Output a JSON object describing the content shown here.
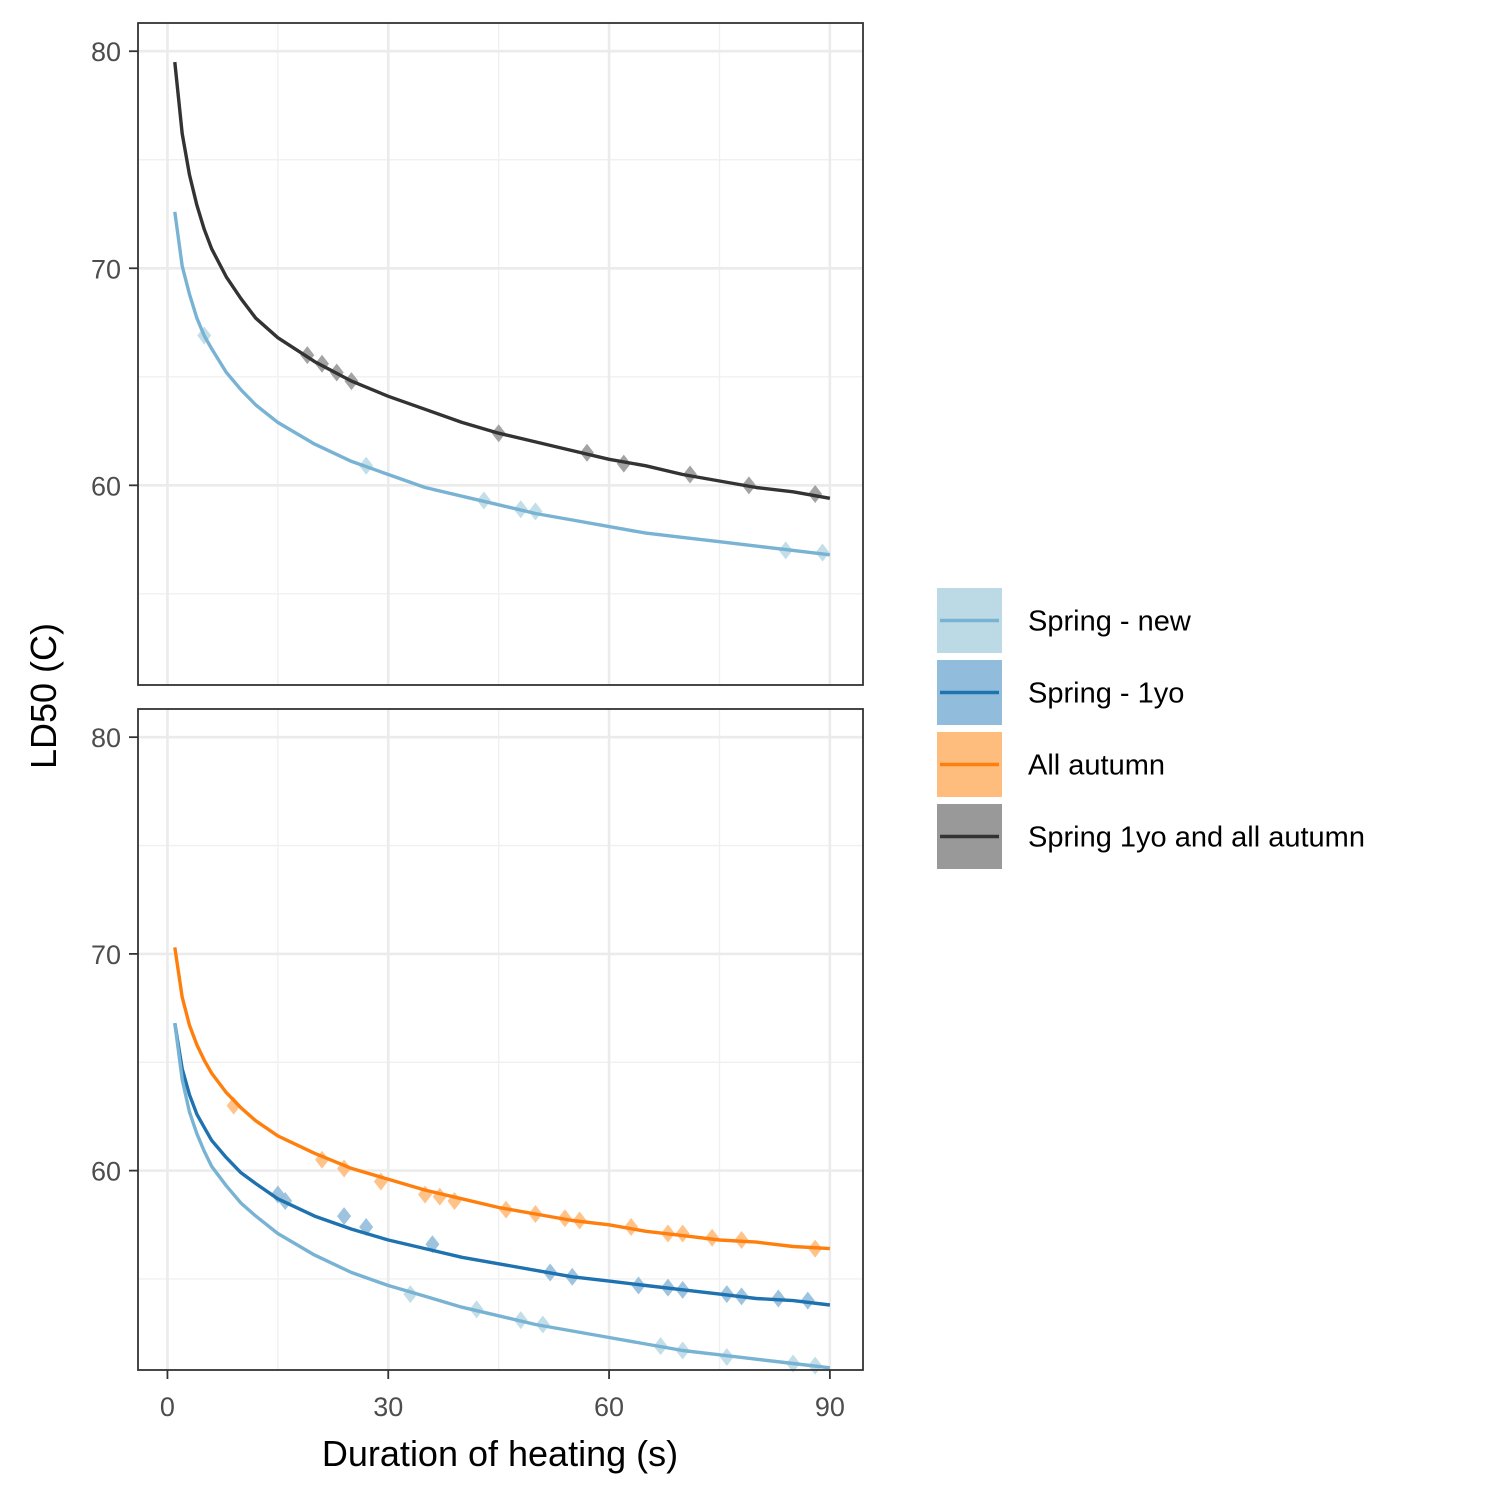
{
  "chart_data": {
    "type": "line",
    "xlabel": "Duration of heating (s)",
    "ylabel": "LD50 (C)",
    "xlim": [
      -4,
      94.5
    ],
    "x_ticks": [
      0,
      30,
      60,
      90
    ],
    "grid": true,
    "legend_position": "right",
    "legend": [
      {
        "key": "spring_new",
        "label": "Spring - new",
        "line_color": "#79B3D4",
        "fill_color": "#BBDAE6"
      },
      {
        "key": "spring_1yo",
        "label": "Spring - 1yo",
        "line_color": "#1F72B0",
        "fill_color": "#92BCDC"
      },
      {
        "key": "all_autumn",
        "label": "All autumn",
        "line_color": "#FF7F0E",
        "fill_color": "#FFBD7D"
      },
      {
        "key": "combined",
        "label": "Spring 1yo and all autumn",
        "line_color": "#333333",
        "fill_color": "#999999"
      }
    ],
    "panels": [
      {
        "ylim": [
          50.8,
          81.3
        ],
        "y_ticks": [
          60,
          70,
          80
        ],
        "series": [
          {
            "key": "combined",
            "curve": [
              [
                1,
                79.5
              ],
              [
                2,
                76.2
              ],
              [
                3,
                74.3
              ],
              [
                4,
                72.9
              ],
              [
                5,
                71.8
              ],
              [
                6,
                70.9
              ],
              [
                8,
                69.6
              ],
              [
                10,
                68.6
              ],
              [
                12,
                67.7
              ],
              [
                15,
                66.8
              ],
              [
                20,
                65.7
              ],
              [
                25,
                64.8
              ],
              [
                30,
                64.1
              ],
              [
                35,
                63.5
              ],
              [
                40,
                62.9
              ],
              [
                45,
                62.4
              ],
              [
                50,
                62.0
              ],
              [
                55,
                61.6
              ],
              [
                60,
                61.2
              ],
              [
                65,
                60.9
              ],
              [
                70,
                60.5
              ],
              [
                75,
                60.2
              ],
              [
                80,
                59.9
              ],
              [
                85,
                59.7
              ],
              [
                90,
                59.4
              ]
            ],
            "points": [
              [
                19,
                66.0
              ],
              [
                21,
                65.6
              ],
              [
                23,
                65.2
              ],
              [
                25,
                64.8
              ],
              [
                45,
                62.4
              ],
              [
                57,
                61.5
              ],
              [
                62,
                61.0
              ],
              [
                71,
                60.5
              ],
              [
                79,
                60.0
              ],
              [
                88,
                59.6
              ]
            ]
          },
          {
            "key": "spring_new",
            "curve": [
              [
                1,
                72.6
              ],
              [
                2,
                70.1
              ],
              [
                3,
                68.8
              ],
              [
                4,
                67.7
              ],
              [
                5,
                66.9
              ],
              [
                6,
                66.3
              ],
              [
                8,
                65.2
              ],
              [
                10,
                64.4
              ],
              [
                12,
                63.7
              ],
              [
                15,
                62.9
              ],
              [
                20,
                61.9
              ],
              [
                25,
                61.1
              ],
              [
                30,
                60.5
              ],
              [
                35,
                59.9
              ],
              [
                40,
                59.5
              ],
              [
                45,
                59.1
              ],
              [
                50,
                58.7
              ],
              [
                55,
                58.4
              ],
              [
                60,
                58.1
              ],
              [
                65,
                57.8
              ],
              [
                70,
                57.6
              ],
              [
                75,
                57.4
              ],
              [
                80,
                57.2
              ],
              [
                85,
                57.0
              ],
              [
                90,
                56.8
              ]
            ],
            "points": [
              [
                5,
                66.9
              ],
              [
                27,
                60.9
              ],
              [
                43,
                59.3
              ],
              [
                48,
                58.9
              ],
              [
                50,
                58.8
              ],
              [
                84,
                57.0
              ],
              [
                89,
                56.9
              ]
            ]
          }
        ]
      },
      {
        "ylim": [
          50.8,
          81.3
        ],
        "y_ticks": [
          60,
          70,
          80
        ],
        "series": [
          {
            "key": "all_autumn",
            "curve": [
              [
                1,
                70.3
              ],
              [
                2,
                68.0
              ],
              [
                3,
                66.7
              ],
              [
                4,
                65.8
              ],
              [
                5,
                65.1
              ],
              [
                6,
                64.5
              ],
              [
                8,
                63.6
              ],
              [
                10,
                62.9
              ],
              [
                12,
                62.3
              ],
              [
                15,
                61.6
              ],
              [
                20,
                60.8
              ],
              [
                25,
                60.1
              ],
              [
                30,
                59.6
              ],
              [
                35,
                59.1
              ],
              [
                40,
                58.7
              ],
              [
                45,
                58.3
              ],
              [
                50,
                58.0
              ],
              [
                55,
                57.7
              ],
              [
                60,
                57.5
              ],
              [
                65,
                57.2
              ],
              [
                70,
                57.0
              ],
              [
                75,
                56.8
              ],
              [
                80,
                56.7
              ],
              [
                85,
                56.5
              ],
              [
                90,
                56.4
              ]
            ],
            "points": [
              [
                9,
                63.0
              ],
              [
                21,
                60.5
              ],
              [
                24,
                60.1
              ],
              [
                29,
                59.5
              ],
              [
                35,
                58.9
              ],
              [
                37,
                58.8
              ],
              [
                39,
                58.6
              ],
              [
                46,
                58.2
              ],
              [
                50,
                58.0
              ],
              [
                54,
                57.8
              ],
              [
                56,
                57.7
              ],
              [
                63,
                57.4
              ],
              [
                68,
                57.1
              ],
              [
                70,
                57.1
              ],
              [
                74,
                56.9
              ],
              [
                78,
                56.8
              ],
              [
                88,
                56.4
              ]
            ]
          },
          {
            "key": "spring_1yo",
            "curve": [
              [
                1,
                66.8
              ],
              [
                2,
                64.7
              ],
              [
                3,
                63.5
              ],
              [
                4,
                62.6
              ],
              [
                5,
                62.0
              ],
              [
                6,
                61.4
              ],
              [
                8,
                60.6
              ],
              [
                10,
                59.9
              ],
              [
                12,
                59.4
              ],
              [
                15,
                58.7
              ],
              [
                20,
                57.9
              ],
              [
                25,
                57.3
              ],
              [
                30,
                56.8
              ],
              [
                35,
                56.4
              ],
              [
                40,
                56.0
              ],
              [
                45,
                55.7
              ],
              [
                50,
                55.4
              ],
              [
                55,
                55.1
              ],
              [
                60,
                54.9
              ],
              [
                65,
                54.7
              ],
              [
                70,
                54.5
              ],
              [
                75,
                54.3
              ],
              [
                80,
                54.1
              ],
              [
                85,
                54.0
              ],
              [
                90,
                53.8
              ]
            ],
            "points": [
              [
                15,
                58.9
              ],
              [
                16,
                58.6
              ],
              [
                24,
                57.9
              ],
              [
                27,
                57.4
              ],
              [
                36,
                56.6
              ],
              [
                52,
                55.3
              ],
              [
                55,
                55.1
              ],
              [
                64,
                54.7
              ],
              [
                68,
                54.6
              ],
              [
                70,
                54.5
              ],
              [
                76,
                54.3
              ],
              [
                78,
                54.2
              ],
              [
                83,
                54.1
              ],
              [
                87,
                54.0
              ]
            ]
          },
          {
            "key": "spring_new",
            "curve": [
              [
                1,
                66.8
              ],
              [
                2,
                64.2
              ],
              [
                3,
                62.7
              ],
              [
                4,
                61.7
              ],
              [
                5,
                60.9
              ],
              [
                6,
                60.2
              ],
              [
                8,
                59.3
              ],
              [
                10,
                58.5
              ],
              [
                12,
                57.9
              ],
              [
                15,
                57.1
              ],
              [
                20,
                56.1
              ],
              [
                25,
                55.3
              ],
              [
                30,
                54.7
              ],
              [
                35,
                54.2
              ],
              [
                40,
                53.7
              ],
              [
                45,
                53.3
              ],
              [
                50,
                52.9
              ],
              [
                55,
                52.6
              ],
              [
                60,
                52.3
              ],
              [
                65,
                52.0
              ],
              [
                70,
                51.7
              ],
              [
                75,
                51.5
              ],
              [
                80,
                51.3
              ],
              [
                85,
                51.1
              ],
              [
                90,
                50.9
              ]
            ],
            "points": [
              [
                33,
                54.3
              ],
              [
                42,
                53.6
              ],
              [
                48,
                53.1
              ],
              [
                51,
                52.9
              ],
              [
                67,
                51.9
              ],
              [
                70,
                51.7
              ],
              [
                76,
                51.4
              ],
              [
                85,
                51.1
              ],
              [
                88,
                51.0
              ]
            ]
          }
        ]
      }
    ]
  }
}
